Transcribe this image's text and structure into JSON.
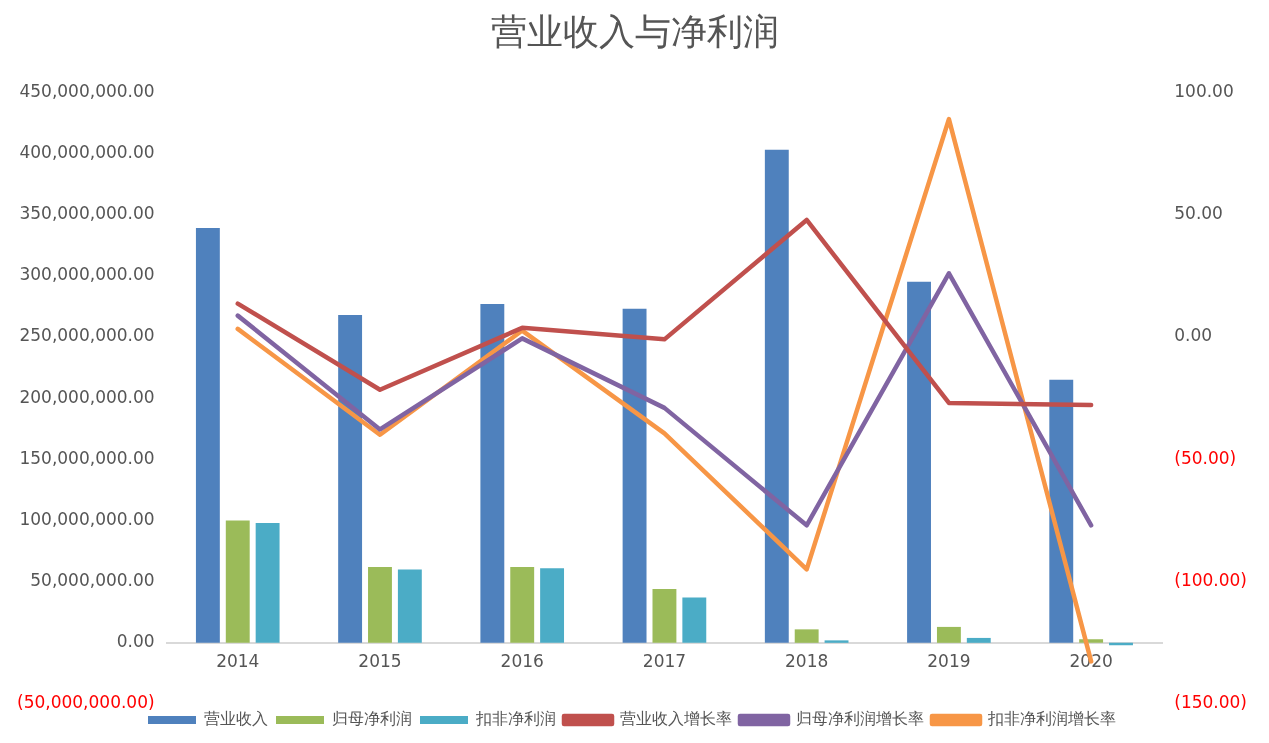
{
  "chart_data": {
    "type": "bar",
    "title": "营业收入与净利润",
    "categories": [
      "2014",
      "2015",
      "2016",
      "2017",
      "2018",
      "2019",
      "2020"
    ],
    "series": [
      {
        "name": "营业收入",
        "color": "#4f81bd",
        "values": [
          339000000,
          268000000,
          277000000,
          273000000,
          403000000,
          295000000,
          215000000
        ]
      },
      {
        "name": "归母净利润",
        "color": "#9bbb59",
        "values": [
          100000000,
          62000000,
          62000000,
          44000000,
          11000000,
          13000000,
          3000000
        ]
      },
      {
        "name": "扣非净利润",
        "color": "#4bacc6",
        "values": [
          98000000,
          60000000,
          61000000,
          37000000,
          2000000,
          4000000,
          -2000000
        ]
      },
      {
        "name": "营业收入增长率",
        "type": "line",
        "axis": "y2",
        "color": "#c0504d",
        "values": [
          13.6,
          -21.6,
          3.7,
          -1,
          47.8,
          -27,
          -27.8
        ]
      },
      {
        "name": "归母净利润增长率",
        "type": "line",
        "axis": "y2",
        "color": "#8064a2",
        "values": [
          8.7,
          -37.8,
          -0.6,
          -29,
          -77,
          26,
          -77
        ]
      },
      {
        "name": "扣非净利润增长率",
        "type": "line",
        "axis": "y2",
        "color": "#f79646",
        "values": [
          3.3,
          -40,
          2.6,
          -39.4,
          -95,
          89,
          -132.6
        ]
      }
    ],
    "ylim": [
      -50000000,
      450000000
    ],
    "yticks": [
      {
        "value": -50000000,
        "label": "(50,000,000.00)"
      },
      {
        "value": 0,
        "label": "0.00"
      },
      {
        "value": 50000000,
        "label": "50,000,000.00"
      },
      {
        "value": 100000000,
        "label": "100,000,000.00"
      },
      {
        "value": 150000000,
        "label": "150,000,000.00"
      },
      {
        "value": 200000000,
        "label": "200,000,000.00"
      },
      {
        "value": 250000000,
        "label": "250,000,000.00"
      },
      {
        "value": 300000000,
        "label": "300,000,000.00"
      },
      {
        "value": 350000000,
        "label": "350,000,000.00"
      },
      {
        "value": 400000000,
        "label": "400,000,000.00"
      },
      {
        "value": 450000000,
        "label": "450,000,000.00"
      }
    ],
    "y2lim": [
      -150,
      100
    ],
    "y2ticks": [
      {
        "value": -150,
        "label": "(150.00)"
      },
      {
        "value": -100,
        "label": "(100.00)"
      },
      {
        "value": -50,
        "label": "(50.00)"
      },
      {
        "value": 0,
        "label": "0.00"
      },
      {
        "value": 50,
        "label": "50.00"
      },
      {
        "value": 100,
        "label": "100.00"
      }
    ],
    "grid": false,
    "legend": "bottom",
    "marker": "none",
    "line_style": "solid"
  }
}
